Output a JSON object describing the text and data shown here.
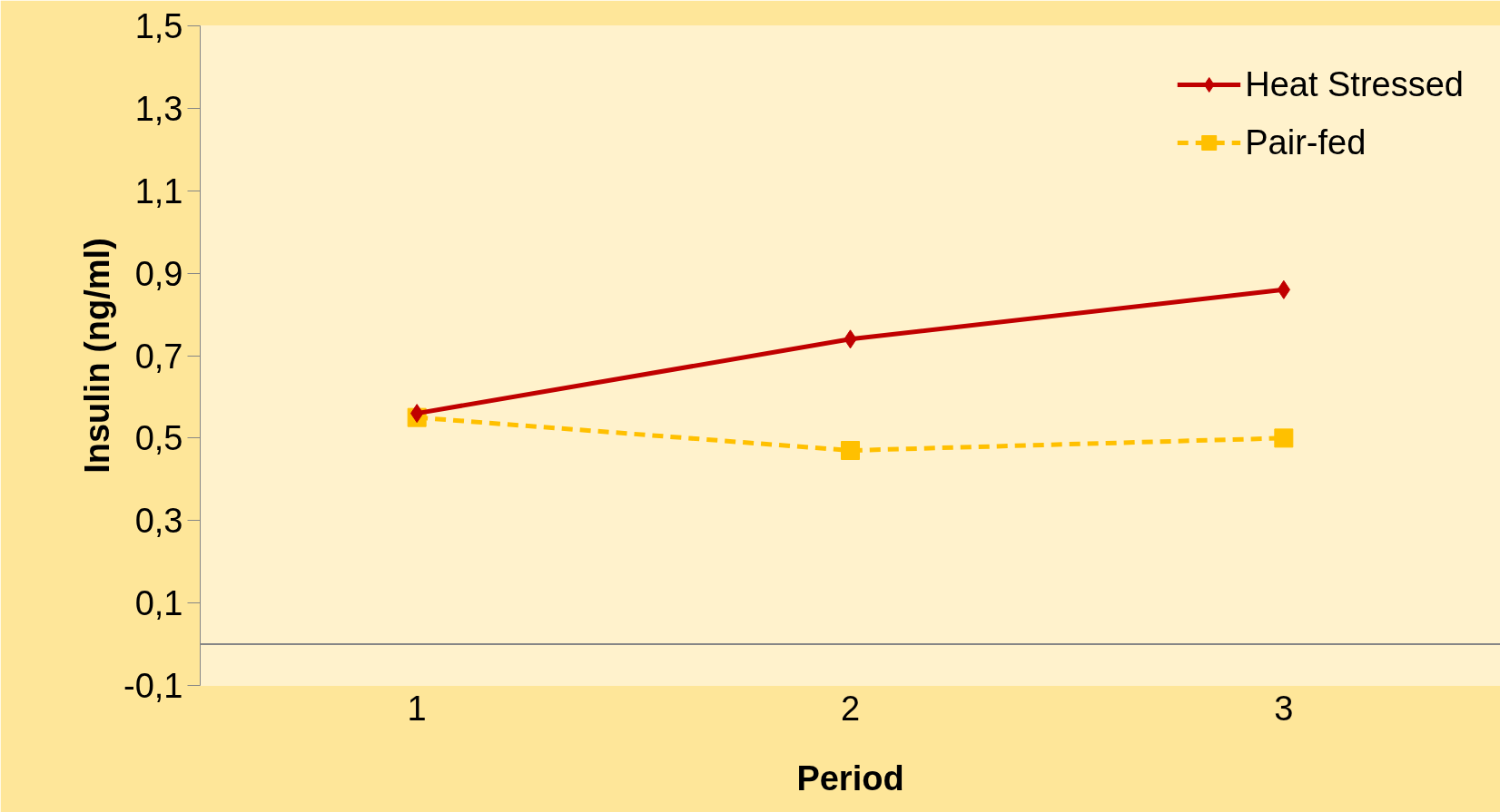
{
  "chart_data": {
    "type": "line",
    "xlabel": "Period",
    "ylabel": "Insulin (ng/ml)",
    "categories": [
      "1",
      "2",
      "3"
    ],
    "series": [
      {
        "name": "Heat Stressed",
        "color": "#c00000",
        "values": [
          0.56,
          0.74,
          0.86
        ],
        "marker": "diamond",
        "line_style": "solid"
      },
      {
        "name": "Pair-fed",
        "color": "#ffc000",
        "values": [
          0.55,
          0.47,
          0.5
        ],
        "marker": "square",
        "line_style": "dashed"
      }
    ],
    "ylim": [
      -0.1,
      1.5
    ],
    "yticks": [
      {
        "value": -0.1,
        "label": "-0,1"
      },
      {
        "value": 0.1,
        "label": "0,1"
      },
      {
        "value": 0.3,
        "label": "0,3"
      },
      {
        "value": 0.5,
        "label": "0,5"
      },
      {
        "value": 0.7,
        "label": "0,7"
      },
      {
        "value": 0.9,
        "label": "0,9"
      },
      {
        "value": 1.1,
        "label": "1,1"
      },
      {
        "value": 1.3,
        "label": "1,3"
      },
      {
        "value": 1.5,
        "label": "1,5"
      }
    ],
    "ref_lines": [
      {
        "axis": "y",
        "value": 0,
        "color": "#868686"
      }
    ],
    "grid": false,
    "legend": "top right"
  }
}
